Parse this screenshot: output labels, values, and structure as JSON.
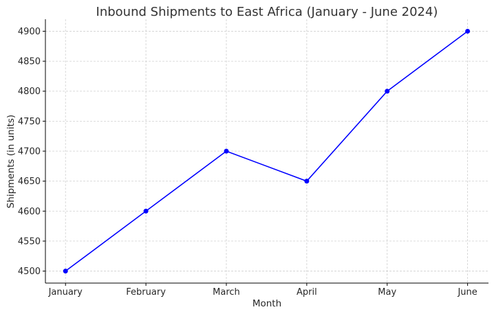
{
  "chart_data": {
    "type": "line",
    "title": "Inbound Shipments to East Africa (January - June 2024)",
    "xlabel": "Month",
    "ylabel": "Shipments (in units)",
    "categories": [
      "January",
      "February",
      "March",
      "April",
      "May",
      "June"
    ],
    "series": [
      {
        "values": [
          4500,
          4600,
          4700,
          4650,
          4800,
          4900
        ],
        "color": "#0000ff",
        "marker": "circle"
      }
    ],
    "yticks": [
      4500,
      4550,
      4600,
      4650,
      4700,
      4750,
      4800,
      4850,
      4900
    ],
    "ylim": [
      4480,
      4920
    ],
    "grid": true,
    "legend": "none"
  }
}
